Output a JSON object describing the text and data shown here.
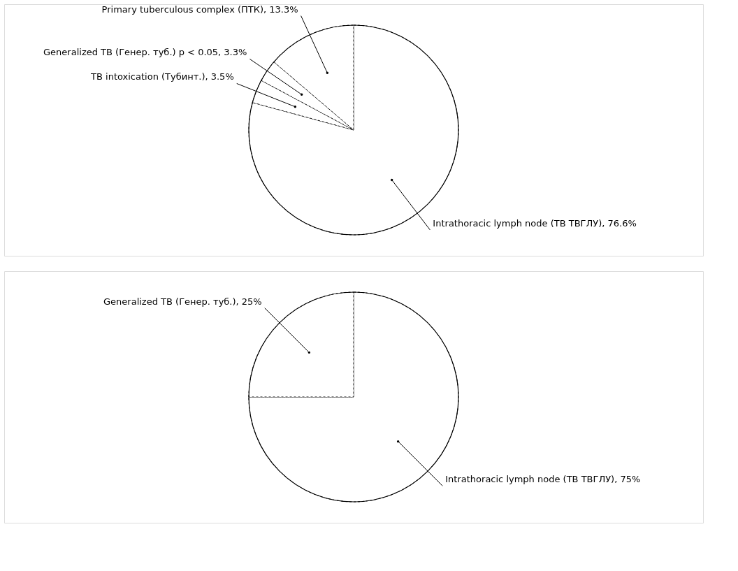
{
  "chart_data": [
    {
      "type": "pie",
      "categories": [
        "Primary tuberculous complex (ПТК)",
        "Generalized TB (Генер. туб.) p < 0.05",
        "TB intoxication (Тубинт.)",
        "Intrathoracic lymph node (ТВ ТВГЛУ)"
      ],
      "values": [
        13.3,
        3.3,
        3.5,
        76.6
      ],
      "value_labels": [
        "13.3%",
        "3.3%",
        "3.5%",
        "76.6%"
      ],
      "colors": [
        "#ffffff",
        "#ffffff",
        "#ffffff",
        "#ffffff"
      ],
      "legend": false
    },
    {
      "type": "pie",
      "categories": [
        "Generalized TB (Генер. туб.)",
        "Intrathoracic lymph node (ТВ ТВГЛУ)"
      ],
      "values": [
        25,
        75
      ],
      "value_labels": [
        "25%",
        "75%"
      ],
      "colors": [
        "#ffffff",
        "#ffffff"
      ],
      "legend": false
    }
  ]
}
